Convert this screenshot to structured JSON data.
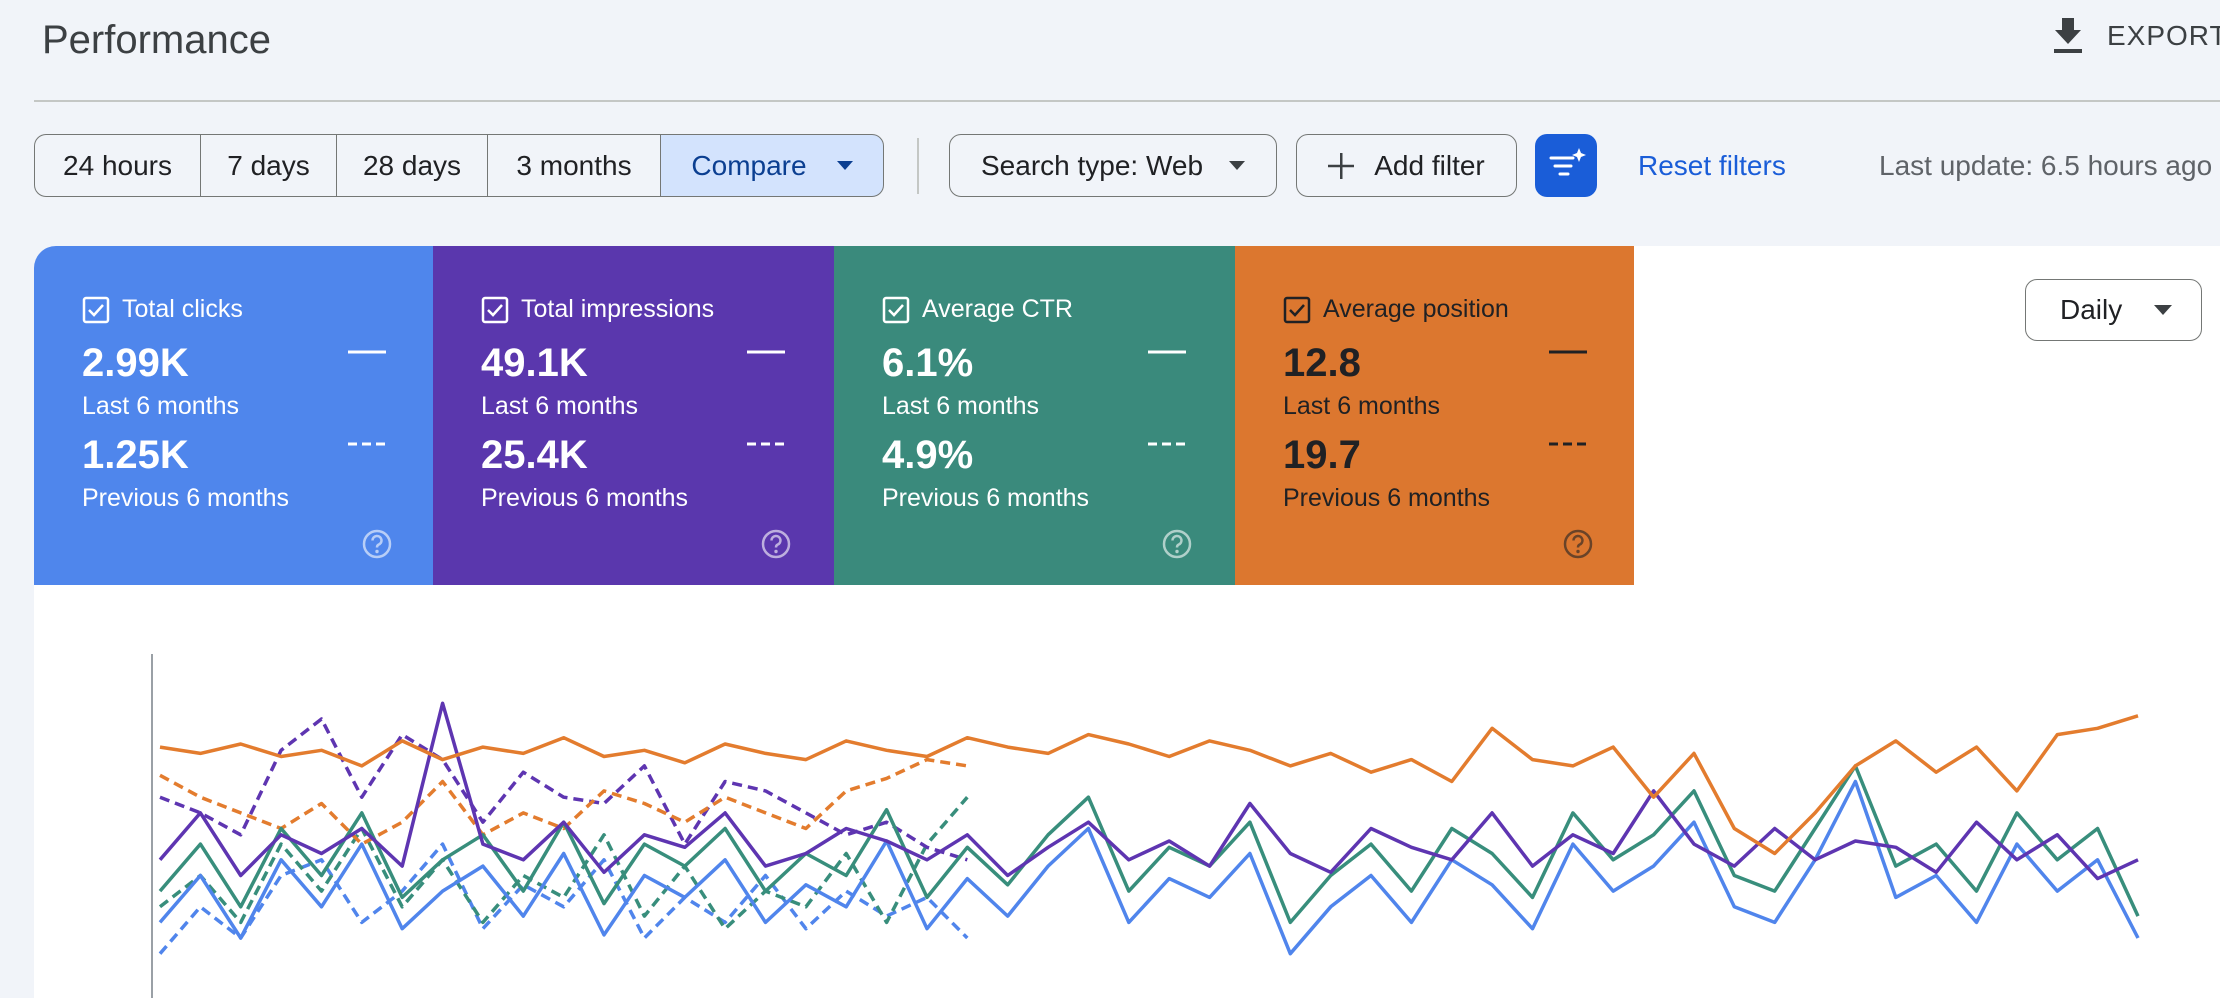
{
  "header": {
    "title": "Performance",
    "export": "EXPORT"
  },
  "filters": {
    "ranges": [
      "24 hours",
      "7 days",
      "28 days",
      "3 months",
      "Compare"
    ],
    "search_type": "Search type: Web",
    "add_filter": "Add filter",
    "reset": "Reset filters",
    "last_update": "Last update: 6.5 hours ago"
  },
  "cards": [
    {
      "label": "Total clicks",
      "value": "2.99K",
      "current_label": "Last 6 months",
      "previous_value": "1.25K",
      "previous_label": "Previous 6 months",
      "color": "#4f86ec",
      "text_color": "#ffffff"
    },
    {
      "label": "Total impressions",
      "value": "49.1K",
      "current_label": "Last 6 months",
      "previous_value": "25.4K",
      "previous_label": "Previous 6 months",
      "color": "#5a37ad",
      "text_color": "#ffffff"
    },
    {
      "label": "Average CTR",
      "value": "6.1%",
      "current_label": "Last 6 months",
      "previous_value": "4.9%",
      "previous_label": "Previous 6 months",
      "color": "#3a8a7c",
      "text_color": "#ffffff"
    },
    {
      "label": "Average position",
      "value": "12.8",
      "current_label": "Last 6 months",
      "previous_value": "19.7",
      "previous_label": "Previous 6 months",
      "color": "#dc772f",
      "text_color": "#202124"
    }
  ],
  "granularity": "Daily",
  "chart_data": {
    "type": "line",
    "ylim": [
      0,
      100
    ],
    "series": [
      {
        "color": "#e37c2e",
        "dashed": false,
        "values": [
          76,
          74,
          77,
          73,
          75,
          70,
          78,
          72,
          76,
          74,
          79,
          73,
          75,
          71,
          77,
          74,
          72,
          78,
          75,
          73,
          79,
          76,
          74,
          80,
          77,
          73,
          78,
          75,
          70,
          74,
          68,
          72,
          65,
          82,
          72,
          70,
          76,
          60,
          74,
          50,
          42,
          55,
          70,
          78,
          68,
          76,
          62,
          80,
          82,
          86
        ]
      },
      {
        "color": "#5e35b1",
        "dashed": false,
        "values": [
          40,
          55,
          35,
          48,
          42,
          50,
          38,
          90,
          45,
          40,
          52,
          36,
          48,
          44,
          55,
          38,
          42,
          50,
          46,
          40,
          48,
          35,
          44,
          52,
          40,
          46,
          38,
          58,
          42,
          36,
          50,
          44,
          40,
          55,
          38,
          48,
          42,
          62,
          45,
          38,
          50,
          40,
          46,
          44,
          36,
          52,
          40,
          48,
          34,
          40
        ]
      },
      {
        "color": "#388e7c",
        "dashed": false,
        "values": [
          30,
          45,
          25,
          50,
          35,
          55,
          28,
          40,
          48,
          30,
          52,
          26,
          45,
          38,
          50,
          30,
          42,
          35,
          56,
          28,
          44,
          32,
          48,
          60,
          30,
          44,
          38,
          52,
          20,
          35,
          45,
          30,
          50,
          42,
          28,
          55,
          40,
          48,
          62,
          35,
          30,
          50,
          70,
          38,
          45,
          30,
          55,
          40,
          50,
          22
        ]
      },
      {
        "color": "#5085ec",
        "dashed": false,
        "values": [
          20,
          35,
          15,
          40,
          25,
          45,
          18,
          30,
          38,
          22,
          42,
          16,
          35,
          28,
          40,
          20,
          32,
          25,
          46,
          18,
          34,
          22,
          38,
          50,
          20,
          34,
          28,
          42,
          10,
          25,
          35,
          20,
          40,
          32,
          18,
          45,
          30,
          38,
          52,
          25,
          20,
          40,
          65,
          28,
          35,
          20,
          45,
          30,
          40,
          15
        ]
      },
      {
        "color": "#e37c2e",
        "dashed": true,
        "values": [
          67,
          60,
          55,
          50,
          58,
          45,
          52,
          65,
          48,
          55,
          50,
          62,
          58,
          52,
          60,
          55,
          50,
          62,
          66,
          72,
          70,
          null,
          null,
          null,
          null,
          null,
          null,
          null,
          null,
          null,
          null,
          null,
          null,
          null,
          null,
          null,
          null,
          null,
          null,
          null,
          null,
          null,
          null,
          null,
          null,
          null,
          null,
          null,
          null,
          null
        ]
      },
      {
        "color": "#5e35b1",
        "dashed": true,
        "values": [
          60,
          55,
          48,
          75,
          85,
          60,
          80,
          72,
          52,
          68,
          60,
          58,
          70,
          45,
          65,
          62,
          55,
          48,
          52,
          44,
          40,
          null,
          null,
          null,
          null,
          null,
          null,
          null,
          null,
          null,
          null,
          null,
          null,
          null,
          null,
          null,
          null,
          null,
          null,
          null,
          null,
          null,
          null,
          null,
          null,
          null,
          null,
          null,
          null,
          null
        ]
      },
      {
        "color": "#388e7c",
        "dashed": true,
        "values": [
          25,
          35,
          20,
          45,
          30,
          50,
          25,
          40,
          20,
          35,
          28,
          48,
          22,
          38,
          18,
          30,
          25,
          42,
          20,
          45,
          60,
          null,
          null,
          null,
          null,
          null,
          null,
          null,
          null,
          null,
          null,
          null,
          null,
          null,
          null,
          null,
          null,
          null,
          null,
          null,
          null,
          null,
          null,
          null,
          null,
          null,
          null,
          null,
          null,
          null
        ]
      },
      {
        "color": "#5085ec",
        "dashed": true,
        "values": [
          10,
          25,
          15,
          35,
          40,
          20,
          30,
          45,
          18,
          32,
          25,
          40,
          15,
          28,
          20,
          35,
          18,
          30,
          22,
          28,
          15,
          null,
          null,
          null,
          null,
          null,
          null,
          null,
          null,
          null,
          null,
          null,
          null,
          null,
          null,
          null,
          null,
          null,
          null,
          null,
          null,
          null,
          null,
          null,
          null,
          null,
          null,
          null,
          null,
          null
        ]
      }
    ]
  }
}
